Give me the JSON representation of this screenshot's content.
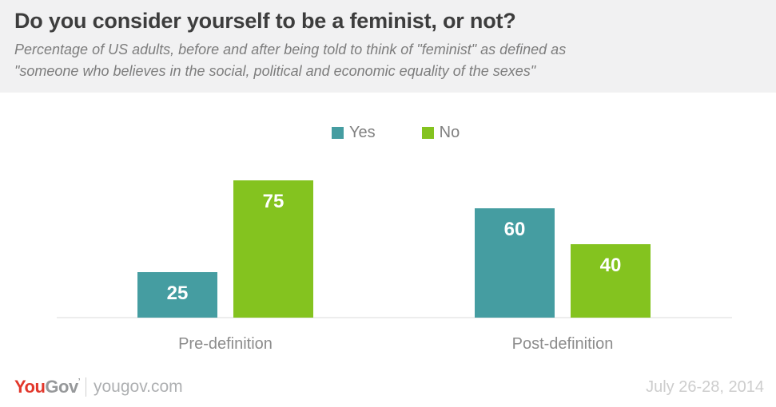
{
  "header": {
    "title": "Do you consider yourself to be a feminist, or not?",
    "subtitle_line1": "Percentage of US adults, before and after being told to think of \"feminist\" as defined as",
    "subtitle_line2": "\"someone who believes in the social, political and economic equality of the sexes\""
  },
  "chart_data": {
    "type": "bar",
    "title": "Do you consider yourself to be a feminist, or not?",
    "subtitle": "Percentage of US adults, before and after being told to think of \"feminist\" as defined as \"someone who believes in the social, political and economic equality of the sexes\"",
    "categories": [
      "Pre-definition",
      "Post-definition"
    ],
    "series": [
      {
        "name": "Yes",
        "color": "#459da1",
        "values": [
          25,
          60
        ]
      },
      {
        "name": "No",
        "color": "#84c31f",
        "values": [
          75,
          40
        ]
      }
    ],
    "ylim": [
      0,
      100
    ],
    "grid": false,
    "value_labels": true,
    "legend_position": "top-center",
    "y_axis_visible": false
  },
  "colors": {
    "yes_teal": "#459da1",
    "no_green": "#84c31f",
    "header_background": "#f1f1f2",
    "axis_line": "#ededed",
    "logo_red": "#e2372b"
  },
  "footer": {
    "logo_you": "You",
    "logo_gov": "Gov",
    "logo_mark": "’",
    "site": "yougov.com",
    "date": "July 26-28, 2014"
  }
}
